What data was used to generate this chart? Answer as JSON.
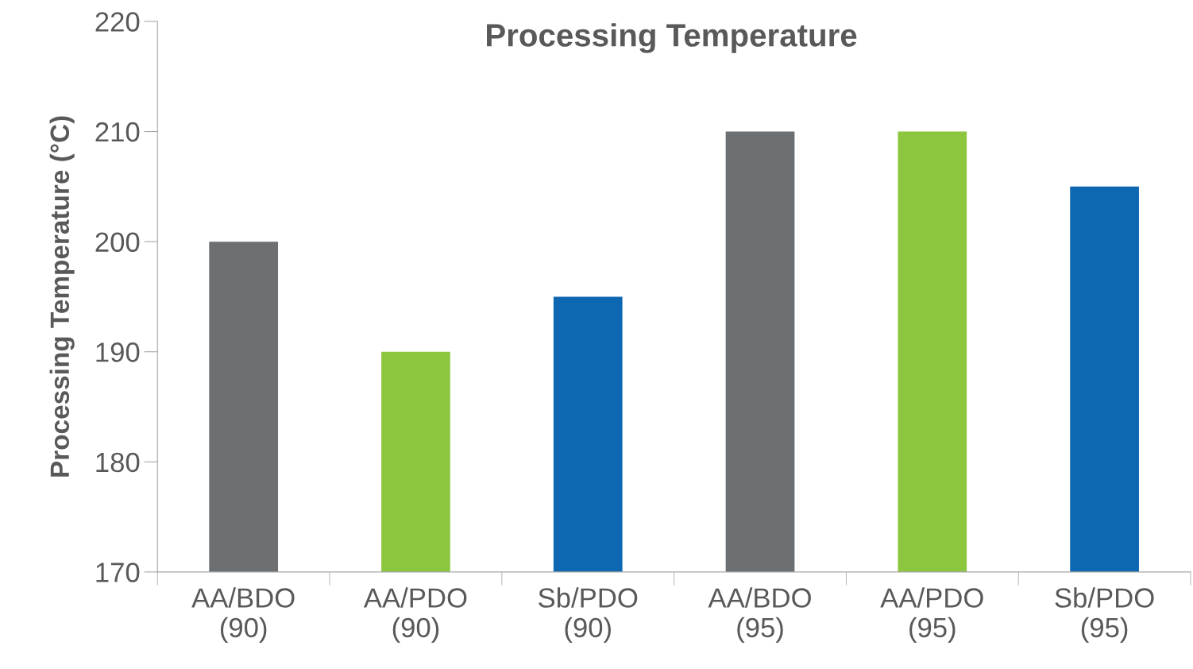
{
  "chart_data": {
    "type": "bar",
    "title": "Processing Temperature",
    "ylabel": "Processing Temperature (°C)",
    "categories": [
      "AA/BDO\n(90)",
      "AA/PDO\n(90)",
      "Sb/PDO\n(90)",
      "AA/BDO\n(95)",
      "AA/PDO\n(95)",
      "Sb/PDO\n(95)"
    ],
    "values": [
      200,
      190,
      195,
      210,
      210,
      205
    ],
    "colors": [
      "#6d7073",
      "#8cc63f",
      "#0e67b1",
      "#6d7073",
      "#8cc63f",
      "#0e67b1"
    ],
    "ylim": [
      170,
      220
    ],
    "yticks": [
      170,
      180,
      190,
      200,
      210,
      220
    ],
    "grid": false,
    "legend": false
  }
}
